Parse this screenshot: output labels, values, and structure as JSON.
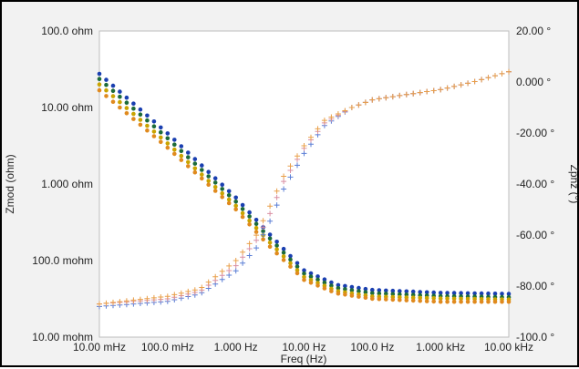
{
  "chart_data": {
    "type": "scatter",
    "title": "",
    "xlabel": "Freq (Hz)",
    "ylabel_left": "Zmod (ohm)",
    "ylabel_right": "Zphz (°)",
    "x_scale": "log",
    "y_left_scale": "log",
    "xlim": [
      0.01,
      10000
    ],
    "ylim_left": [
      0.01,
      100
    ],
    "ylim_right": [
      -100,
      20
    ],
    "x_ticks": [
      "10.00 mHz",
      "100.0 mHz",
      "1.000 Hz",
      "10.00 Hz",
      "100.0 Hz",
      "1.000 kHz",
      "10.00 kHz"
    ],
    "y_left_ticks": [
      "100.0 ohm",
      "10.00 ohm",
      "1.000 ohm",
      "100.0 mohm",
      "10.00 mohm"
    ],
    "y_right_ticks": [
      "20.00 °",
      "0.000 °",
      "-20.00 °",
      "-40.00 °",
      "-60.00 °",
      "-80.00 °",
      "-100.0 °"
    ],
    "zmod_series": [
      {
        "color": "#1a3fb0",
        "marker": "circle",
        "shift": 0.06,
        "x": [
          0.01,
          0.1,
          1,
          3,
          10,
          30,
          100,
          1000,
          10000
        ],
        "y": [
          24,
          4.0,
          0.58,
          0.2,
          0.065,
          0.042,
          0.036,
          0.033,
          0.032
        ]
      },
      {
        "color": "#1d6b3a",
        "marker": "circle",
        "shift": 0.03,
        "x": [
          0.01,
          0.1,
          1,
          3,
          10,
          30,
          100,
          1000,
          10000
        ],
        "y": [
          22,
          3.7,
          0.55,
          0.19,
          0.063,
          0.041,
          0.035,
          0.032,
          0.031
        ]
      },
      {
        "color": "#c9a400",
        "marker": "circle",
        "shift": 0.0,
        "x": [
          0.01,
          0.1,
          1,
          3,
          10,
          30,
          100,
          1000,
          10000
        ],
        "y": [
          20,
          3.4,
          0.52,
          0.18,
          0.061,
          0.04,
          0.034,
          0.032,
          0.031
        ]
      },
      {
        "color": "#e08a1e",
        "marker": "circle",
        "shift": -0.03,
        "x": [
          0.01,
          0.1,
          1,
          3,
          10,
          30,
          100,
          1000,
          10000
        ],
        "y": [
          18,
          3.2,
          0.5,
          0.17,
          0.06,
          0.04,
          0.034,
          0.031,
          0.031
        ]
      }
    ],
    "zphz_series": [
      {
        "color": "#5b7fd6",
        "marker": "plus",
        "x": [
          0.01,
          0.1,
          0.3,
          1,
          2,
          3,
          5,
          10,
          20,
          50,
          100,
          300,
          1000,
          3000,
          10000
        ],
        "y": [
          -88,
          -86,
          -83,
          -74,
          -65,
          -56,
          -42,
          -28,
          -17,
          -10,
          -7,
          -5,
          -3,
          0,
          4
        ]
      },
      {
        "color": "#d98fa3",
        "marker": "plus",
        "x": [
          0.01,
          0.1,
          0.3,
          1,
          2,
          3,
          5,
          10,
          20,
          50,
          100,
          300,
          1000,
          3000,
          10000
        ],
        "y": [
          -87,
          -85,
          -82,
          -72,
          -62,
          -53,
          -39,
          -26,
          -16,
          -10,
          -7,
          -5,
          -3,
          0,
          4
        ]
      },
      {
        "color": "#e9a04a",
        "marker": "plus",
        "x": [
          0.01,
          0.1,
          0.3,
          1,
          2,
          3,
          5,
          10,
          20,
          50,
          100,
          300,
          1000,
          3000,
          10000
        ],
        "y": [
          -87,
          -84,
          -81,
          -70,
          -60,
          -50,
          -37,
          -25,
          -15,
          -10,
          -7,
          -5,
          -3,
          0,
          4
        ]
      }
    ]
  }
}
